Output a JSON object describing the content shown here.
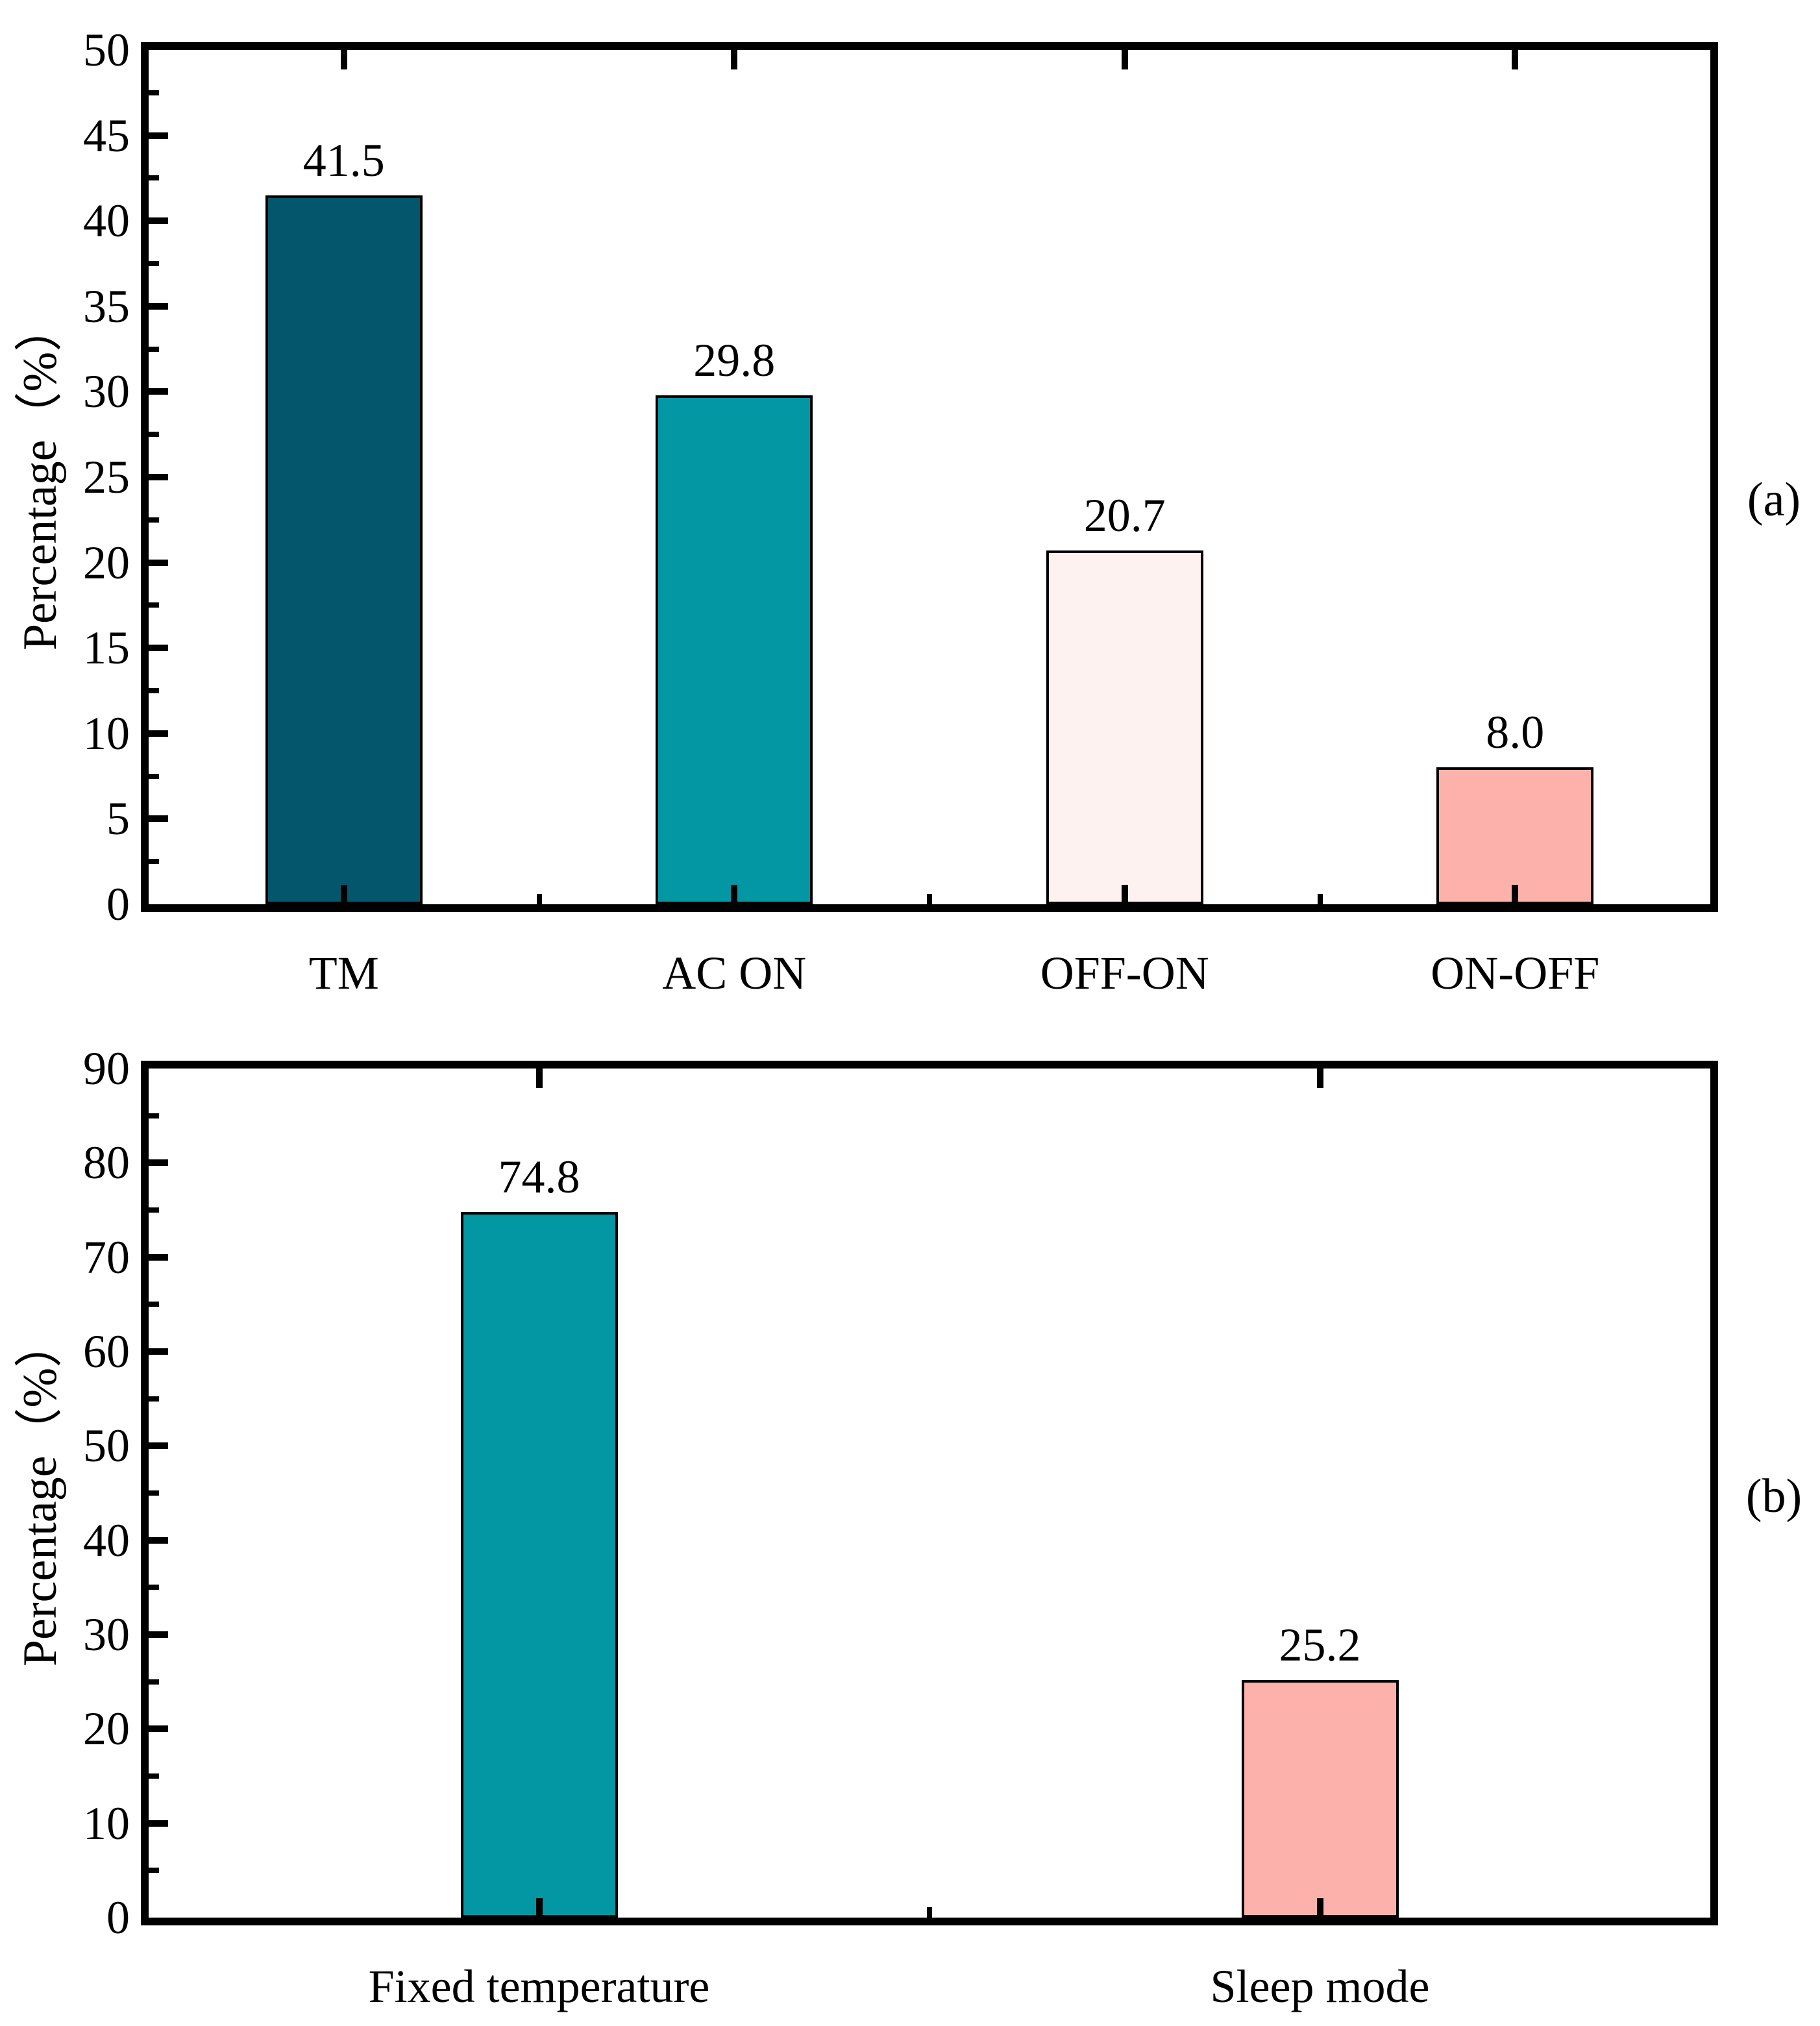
{
  "figure": {
    "background": "#ffffff",
    "axis_color": "#000000",
    "text_color": "#000000"
  },
  "chart_data": [
    {
      "type": "bar",
      "panel_label": "(a)",
      "title": "",
      "xlabel": "",
      "ylabel": "Percentage（%）",
      "categories": [
        "TM",
        "AC ON",
        "OFF-ON",
        "ON-OFF"
      ],
      "values": [
        41.5,
        29.8,
        20.7,
        8.0
      ],
      "value_labels": [
        "41.5",
        "29.8",
        "20.7",
        "8.0"
      ],
      "bar_colors": [
        "#03566B",
        "#0396A3",
        "#FDF2EF",
        "#FCB2AA"
      ],
      "ylim": [
        0,
        50
      ],
      "ytick_step": 5,
      "yminor_step": 2.5,
      "ytick_labels": [
        "0",
        "5",
        "10",
        "15",
        "20",
        "25",
        "30",
        "35",
        "40",
        "45",
        "50"
      ],
      "grid": "off",
      "legend": "none"
    },
    {
      "type": "bar",
      "panel_label": "(b)",
      "title": "",
      "xlabel": "",
      "ylabel": "Percentage（%）",
      "categories": [
        "Fixed temperature",
        "Sleep mode"
      ],
      "values": [
        74.8,
        25.2
      ],
      "value_labels": [
        "74.8",
        "25.2"
      ],
      "bar_colors": [
        "#0396A3",
        "#FCB2AA"
      ],
      "ylim": [
        0,
        90
      ],
      "ytick_step": 10,
      "yminor_step": 5,
      "ytick_labels": [
        "0",
        "10",
        "20",
        "30",
        "40",
        "50",
        "60",
        "70",
        "80",
        "90"
      ],
      "grid": "off",
      "legend": "none"
    }
  ]
}
